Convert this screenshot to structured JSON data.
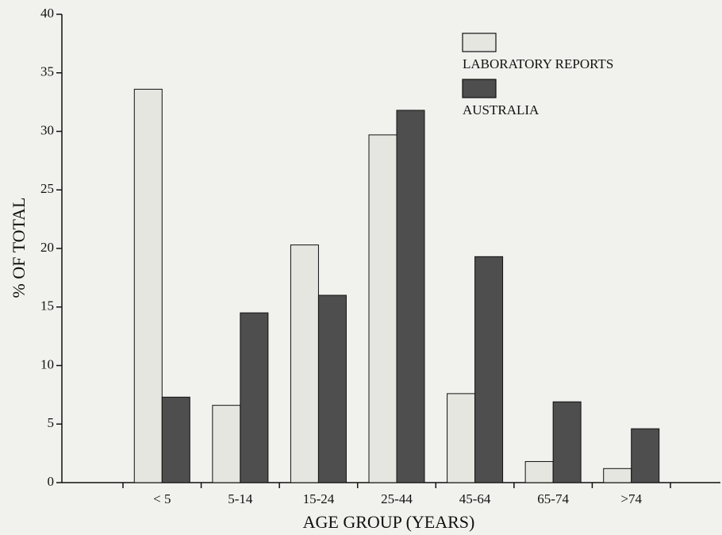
{
  "chart_data": {
    "type": "bar",
    "xlabel": "AGE GROUP (YEARS)",
    "ylabel": "% OF TOTAL",
    "categories": [
      "< 5",
      "5-14",
      "15-24",
      "25-44",
      "45-64",
      "65-74",
      ">74"
    ],
    "series": [
      {
        "name": "LABORATORY REPORTS",
        "color": "#e6e6e1",
        "values": [
          33.6,
          6.6,
          20.3,
          29.7,
          7.6,
          1.8,
          1.2
        ]
      },
      {
        "name": "AUSTRALIA",
        "color": "#4e4e4e",
        "values": [
          7.3,
          14.5,
          16.0,
          31.8,
          19.3,
          6.9,
          4.6
        ]
      }
    ],
    "ylim": [
      0,
      40
    ],
    "yticks": [
      0,
      5,
      10,
      15,
      20,
      25,
      30,
      35,
      40
    ],
    "legend": "upper right"
  }
}
